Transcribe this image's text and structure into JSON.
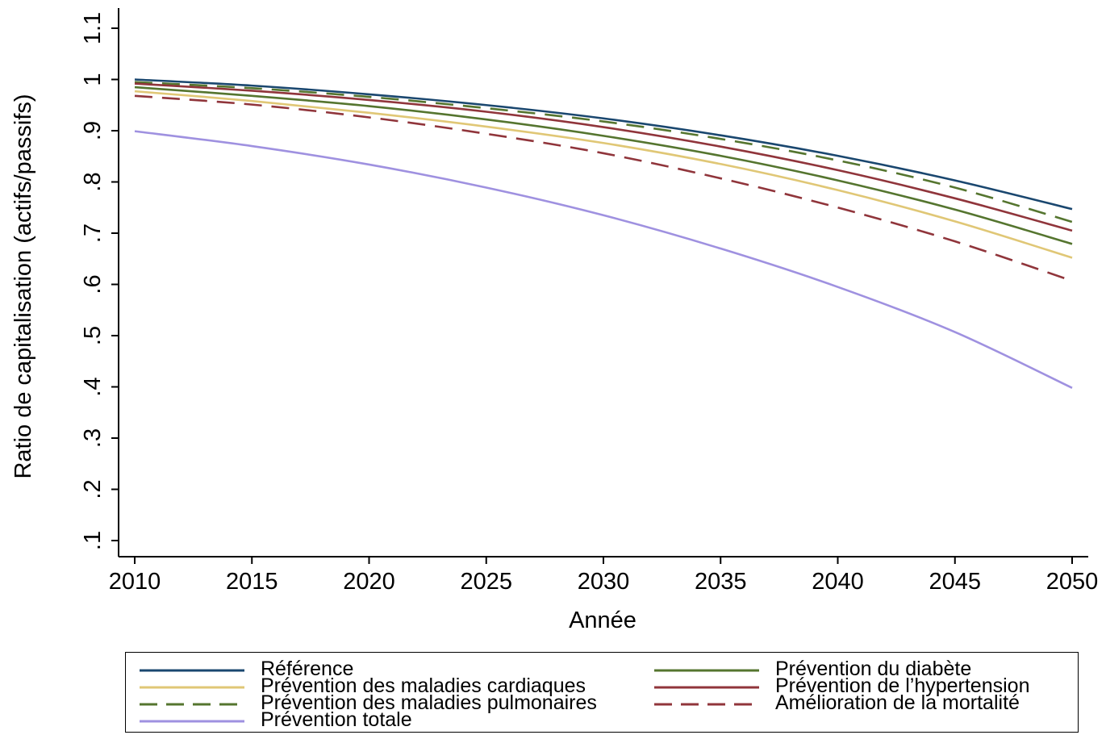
{
  "chart_data": {
    "type": "line",
    "title": "",
    "xlabel": "Année",
    "ylabel": "Ratio de capitalisation (actifs/passifs)",
    "xlim": [
      2010,
      2050
    ],
    "ylim": [
      0.1,
      1.1
    ],
    "xticks": [
      2010,
      2015,
      2020,
      2025,
      2030,
      2035,
      2040,
      2045,
      2050
    ],
    "xtick_labels": [
      "2010",
      "2015",
      "2020",
      "2025",
      "2030",
      "2035",
      "2040",
      "2045",
      "2050"
    ],
    "yticks": [
      0.1,
      0.2,
      0.3,
      0.4,
      0.5,
      0.6,
      0.7,
      0.8,
      0.9,
      1.0,
      1.1
    ],
    "ytick_labels": [
      ".1",
      ".2",
      ".3",
      ".4",
      ".5",
      ".6",
      ".7",
      ".8",
      ".9",
      "1",
      "1.1"
    ],
    "grid": false,
    "legend_position": "bottom",
    "x": [
      2010,
      2015,
      2020,
      2025,
      2030,
      2035,
      2040,
      2045,
      2050
    ],
    "series": [
      {
        "name": "Référence",
        "color": "#1a476f",
        "dash": "solid",
        "values": [
          1.0,
          0.988,
          0.971,
          0.95,
          0.924,
          0.891,
          0.851,
          0.803,
          0.747
        ]
      },
      {
        "name": "Prévention des maladies cardiaques",
        "color": "#e0c776",
        "dash": "solid",
        "values": [
          0.977,
          0.958,
          0.935,
          0.908,
          0.876,
          0.835,
          0.784,
          0.723,
          0.652
        ]
      },
      {
        "name": "Prévention des maladies pulmonaires",
        "color": "#55752f",
        "dash": "dashed",
        "values": [
          0.995,
          0.983,
          0.966,
          0.944,
          0.918,
          0.884,
          0.842,
          0.789,
          0.722
        ]
      },
      {
        "name": "Prévention totale",
        "color": "#9f91e0",
        "dash": "solid",
        "values": [
          0.899,
          0.87,
          0.834,
          0.789,
          0.735,
          0.67,
          0.595,
          0.507,
          0.398
        ]
      },
      {
        "name": "Prévention du diabète",
        "color": "#55752f",
        "dash": "solid",
        "values": [
          0.985,
          0.968,
          0.948,
          0.922,
          0.89,
          0.851,
          0.803,
          0.746,
          0.679
        ]
      },
      {
        "name": "Prévention de l’hypertension",
        "color": "#90353b",
        "dash": "solid",
        "values": [
          0.992,
          0.978,
          0.96,
          0.937,
          0.907,
          0.869,
          0.823,
          0.768,
          0.705
        ]
      },
      {
        "name": "Amélioration de la mortalité",
        "color": "#90353b",
        "dash": "dashed",
        "values": [
          0.968,
          0.951,
          0.926,
          0.894,
          0.856,
          0.807,
          0.75,
          0.684,
          0.607
        ]
      }
    ]
  }
}
